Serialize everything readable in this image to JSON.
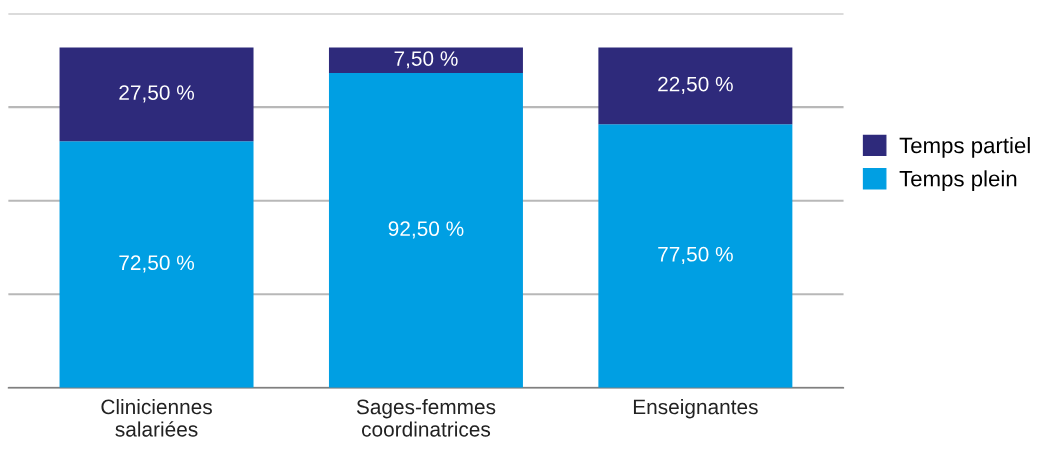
{
  "chart_data": {
    "type": "bar",
    "stacked": true,
    "categories": [
      "Cliniciennes\nsalariées",
      "Sages-femmes\ncoordinatrices",
      "Enseignantes"
    ],
    "series": [
      {
        "name": "Temps plein",
        "color": "#009fe3",
        "values": [
          72.5,
          92.5,
          77.5
        ],
        "value_labels": [
          "72,50 %",
          "92,50 %",
          "77,50 %"
        ]
      },
      {
        "name": "Temps partiel",
        "color": "#2e2a7b",
        "values": [
          27.5,
          7.5,
          22.5
        ],
        "value_labels": [
          "27,50 %",
          "7,50 %",
          "22,50 %"
        ]
      }
    ],
    "ylim": [
      0,
      110
    ],
    "yticks": [
      {
        "value": 0,
        "label": null
      },
      {
        "value": 27.5,
        "label": null
      },
      {
        "value": 55,
        "label": null
      },
      {
        "value": 82.5,
        "label": null
      },
      {
        "value": 110,
        "label": null
      }
    ],
    "grid": "y",
    "legend": "right",
    "tick_labels": "x"
  }
}
